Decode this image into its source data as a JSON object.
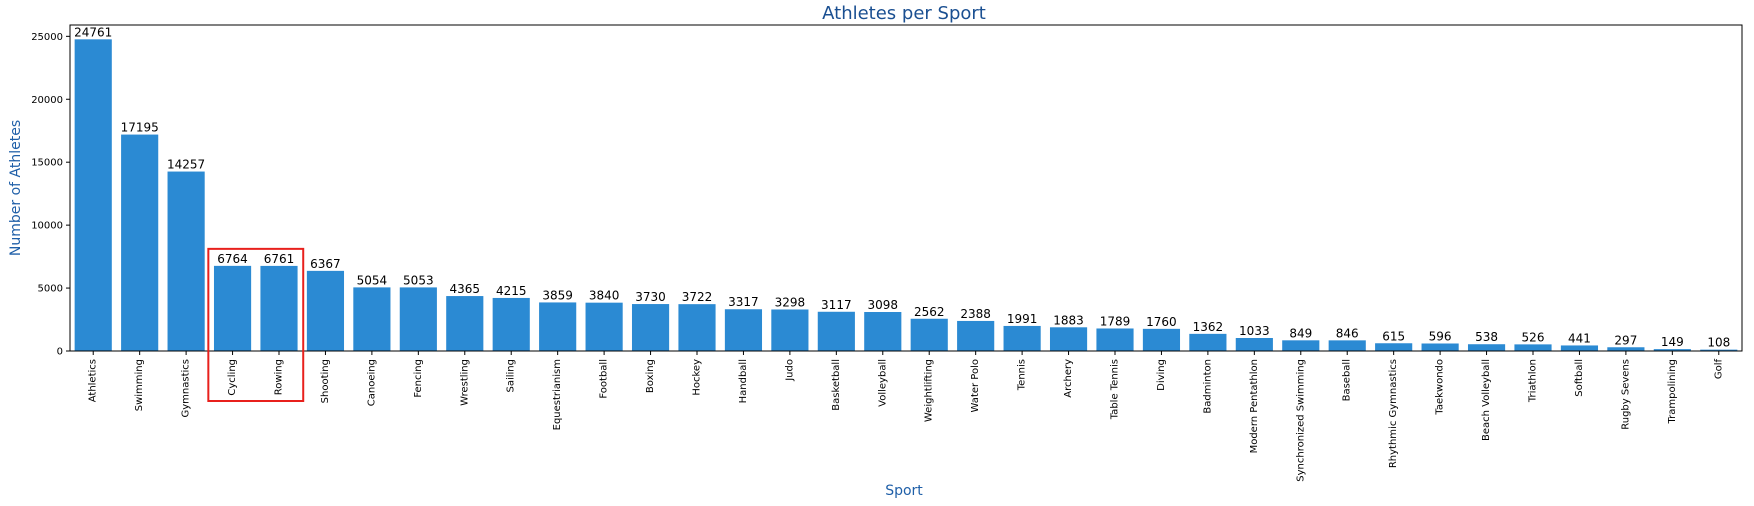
{
  "chart_data": {
    "type": "bar",
    "title": "Athletes per Sport",
    "xlabel": "Sport",
    "ylabel": "Number of Athletes",
    "categories": [
      "Athletics",
      "Swimming",
      "Gymnastics",
      "Cycling",
      "Rowing",
      "Shooting",
      "Canoeing",
      "Fencing",
      "Wrestling",
      "Sailing",
      "Equestrianism",
      "Football",
      "Boxing",
      "Hockey",
      "Handball",
      "Judo",
      "Basketball",
      "Volleyball",
      "Weightlifting",
      "Water Polo",
      "Tennis",
      "Archery",
      "Table Tennis",
      "Diving",
      "Badminton",
      "Modern Pentathlon",
      "Synchronized Swimming",
      "Baseball",
      "Rhythmic Gymnastics",
      "Taekwondo",
      "Beach Volleyball",
      "Triathlon",
      "Softball",
      "Rugby Sevens",
      "Trampolining",
      "Golf"
    ],
    "values": [
      24761,
      17195,
      14257,
      6764,
      6761,
      6367,
      5054,
      5053,
      4365,
      4215,
      3859,
      3840,
      3730,
      3722,
      3317,
      3298,
      3117,
      3098,
      2562,
      2388,
      1991,
      1883,
      1789,
      1760,
      1362,
      1033,
      849,
      846,
      615,
      596,
      538,
      526,
      441,
      297,
      149,
      108
    ],
    "yticks": [
      0,
      5000,
      10000,
      15000,
      20000,
      25000
    ],
    "ylim": [
      0,
      25900
    ],
    "grid": false,
    "highlight": {
      "categories": [
        "Cycling",
        "Rowing"
      ],
      "color": "#e8201c"
    },
    "colors": {
      "bar": "#2b8ad3",
      "title": "#1a4f91",
      "axis_title": "#1f5fa8"
    }
  }
}
